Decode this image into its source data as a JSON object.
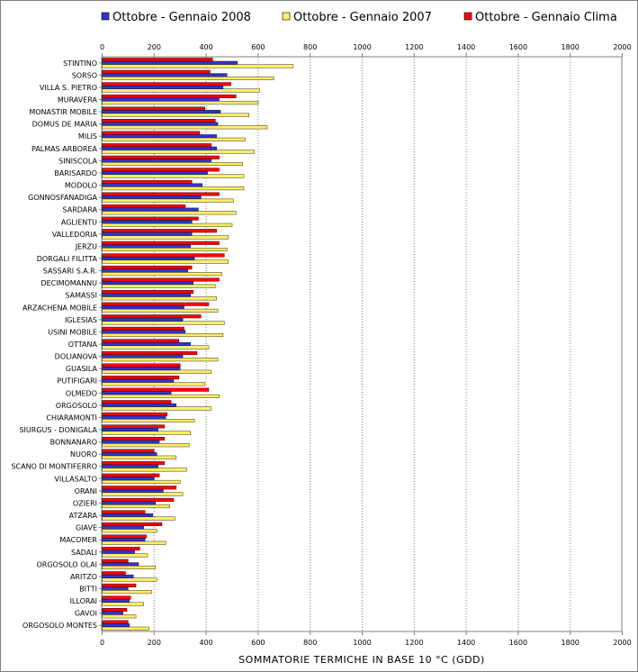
{
  "chart_data": {
    "type": "bar",
    "orientation": "horizontal",
    "title": "",
    "xlabel": "SOMMATORIE TERMICHE IN BASE 10 °C (GDD)",
    "ylabel": "",
    "xlim": [
      0,
      2000
    ],
    "xticks": [
      "0",
      "200",
      "400",
      "600",
      "800",
      "1000",
      "1200",
      "1400",
      "1600",
      "1800",
      "2000"
    ],
    "grid": "vertical dotted",
    "legend_position": "top",
    "series": [
      {
        "name": "Ottobre - Gennaio Clima",
        "color": "#ff0000"
      },
      {
        "name": "Ottobre - Gennaio 2008",
        "color": "#3333cc"
      },
      {
        "name": "Ottobre - Gennaio 2007",
        "color": "#ffee66"
      }
    ],
    "legend_order": [
      1,
      2,
      0
    ],
    "categories": [
      {
        "name": "STINTINO",
        "v": [
          425,
          520,
          735
        ]
      },
      {
        "name": "SORSO",
        "v": [
          415,
          480,
          660
        ]
      },
      {
        "name": "VILLA S. PIETRO",
        "v": [
          495,
          465,
          605
        ]
      },
      {
        "name": "MURAVERA",
        "v": [
          515,
          450,
          600
        ]
      },
      {
        "name": "MONASTIR MOBILE",
        "v": [
          395,
          455,
          565
        ]
      },
      {
        "name": "DOMUS DE MARIA",
        "v": [
          435,
          445,
          635
        ]
      },
      {
        "name": "MILIS",
        "v": [
          375,
          440,
          550
        ]
      },
      {
        "name": "PALMAS ARBOREA",
        "v": [
          420,
          440,
          585
        ]
      },
      {
        "name": "SINISCOLA",
        "v": [
          450,
          420,
          540
        ]
      },
      {
        "name": "BARISARDO",
        "v": [
          450,
          405,
          545
        ]
      },
      {
        "name": "MODOLO",
        "v": [
          345,
          385,
          545
        ]
      },
      {
        "name": "GONNOSFANADIGA",
        "v": [
          450,
          380,
          505
        ]
      },
      {
        "name": "SARDARA",
        "v": [
          320,
          370,
          515
        ]
      },
      {
        "name": "AGLIENTU",
        "v": [
          370,
          345,
          500
        ]
      },
      {
        "name": "VALLEDORIA",
        "v": [
          440,
          345,
          485
        ]
      },
      {
        "name": "JERZU",
        "v": [
          450,
          340,
          480
        ]
      },
      {
        "name": "DORGALI FILITTA",
        "v": [
          470,
          355,
          485
        ]
      },
      {
        "name": "SASSARI S.A.R.",
        "v": [
          345,
          330,
          460
        ]
      },
      {
        "name": "DECIMOMANNU",
        "v": [
          450,
          350,
          435
        ]
      },
      {
        "name": "SAMASSI",
        "v": [
          350,
          340,
          440
        ]
      },
      {
        "name": "ARZACHENA MOBILE",
        "v": [
          410,
          315,
          445
        ]
      },
      {
        "name": "IGLESIAS",
        "v": [
          380,
          310,
          470
        ]
      },
      {
        "name": "USINI MOBILE",
        "v": [
          315,
          320,
          465
        ]
      },
      {
        "name": "OTTANA",
        "v": [
          295,
          340,
          410
        ]
      },
      {
        "name": "DOLIANOVA",
        "v": [
          365,
          310,
          445
        ]
      },
      {
        "name": "GUASILA",
        "v": [
          300,
          300,
          420
        ]
      },
      {
        "name": "PUTIFIGARI",
        "v": [
          295,
          275,
          395
        ]
      },
      {
        "name": "OLMEDO",
        "v": [
          410,
          265,
          450
        ]
      },
      {
        "name": "ORGOSOLO",
        "v": [
          265,
          285,
          420
        ]
      },
      {
        "name": "CHIARAMONTI",
        "v": [
          250,
          245,
          355
        ]
      },
      {
        "name": "SIURGUS - DONIGALA",
        "v": [
          240,
          215,
          340
        ]
      },
      {
        "name": "BONNANARO",
        "v": [
          240,
          220,
          335
        ]
      },
      {
        "name": "NUORO",
        "v": [
          200,
          210,
          285
        ]
      },
      {
        "name": "SCANO DI MONTIFERRO",
        "v": [
          240,
          215,
          325
        ]
      },
      {
        "name": "VILLASALTO",
        "v": [
          220,
          200,
          300
        ]
      },
      {
        "name": "ORANI",
        "v": [
          285,
          235,
          310
        ]
      },
      {
        "name": "OZIERI",
        "v": [
          275,
          205,
          260
        ]
      },
      {
        "name": "ATZARA",
        "v": [
          165,
          195,
          280
        ]
      },
      {
        "name": "GIAVE",
        "v": [
          230,
          160,
          210
        ]
      },
      {
        "name": "MACOMER",
        "v": [
          170,
          165,
          245
        ]
      },
      {
        "name": "SADALI",
        "v": [
          145,
          125,
          175
        ]
      },
      {
        "name": "ORGOSOLO OLAI",
        "v": [
          100,
          140,
          205
        ]
      },
      {
        "name": "ARITZO",
        "v": [
          90,
          120,
          210
        ]
      },
      {
        "name": "BITTI",
        "v": [
          130,
          100,
          190
        ]
      },
      {
        "name": "ILLORAI",
        "v": [
          110,
          105,
          160
        ]
      },
      {
        "name": "GAVOI",
        "v": [
          95,
          80,
          130
        ]
      },
      {
        "name": "ORGOSOLO MONTES",
        "v": [
          100,
          105,
          180
        ]
      }
    ]
  }
}
